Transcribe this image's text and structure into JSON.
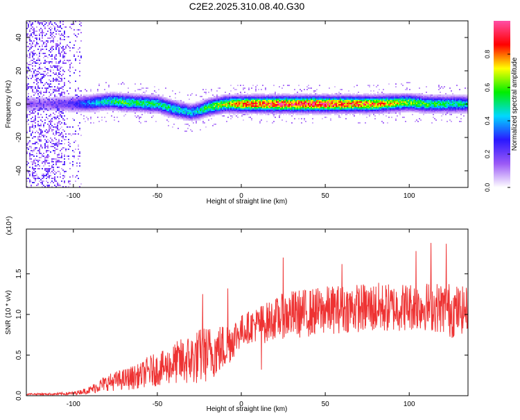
{
  "title": "C2E2.2025.310.08.40.G30",
  "chart_data": [
    {
      "type": "heatmap",
      "xlabel": "Height of straight line (km)",
      "ylabel": "Frequency (Hz)",
      "xlim": [
        -128,
        135
      ],
      "ylim": [
        -50,
        50
      ],
      "xticks": [
        -100,
        -50,
        0,
        50,
        100
      ],
      "yticks": [
        -40,
        -20,
        0,
        20,
        40
      ],
      "grid": false,
      "colorbar": {
        "label": "Normalized spectral amplitude",
        "range": [
          0,
          1
        ],
        "ticks": [
          "0.0",
          "0.2",
          "0.4",
          "0.6",
          "0.8"
        ],
        "tick_values": [
          0.0,
          0.2,
          0.4,
          0.6,
          0.8
        ],
        "colors": [
          "#ffffff",
          "#9b59f6",
          "#2a18ff",
          "#00d8ff",
          "#00ee00",
          "#ffff00",
          "#ff0000",
          "#ff4fa6"
        ]
      },
      "ridge": {
        "x": [
          -115,
          -100,
          -90,
          -80,
          -75,
          -70,
          -60,
          -50,
          -40,
          -30,
          -25,
          -20,
          -10,
          0,
          20,
          50,
          80,
          100,
          110,
          120,
          135
        ],
        "y": [
          0,
          0,
          0.5,
          1.5,
          1.5,
          1.0,
          0.5,
          0,
          -3,
          -5,
          -4,
          -2,
          0,
          0,
          0,
          0,
          0,
          1,
          0,
          0,
          0
        ],
        "amplitude": [
          0.15,
          0.25,
          0.4,
          0.5,
          0.55,
          0.6,
          0.55,
          0.55,
          0.5,
          0.45,
          0.5,
          0.6,
          0.7,
          0.85,
          0.97,
          0.97,
          0.85,
          0.65,
          0.6,
          0.55,
          0.5
        ],
        "width_hz": 2.5
      }
    },
    {
      "type": "line",
      "xlabel": "Height of straight line (km)",
      "ylabel": "SNR (10 * v/v)",
      "yscale_label": "(x10⁴)",
      "xlim": [
        -128,
        135
      ],
      "ylim": [
        0,
        2.05
      ],
      "xticks": [
        -100,
        -50,
        0,
        50,
        100
      ],
      "yticks": [
        "0.0",
        "0.5",
        "1.0",
        "1.5"
      ],
      "ytick_values": [
        0,
        0.5,
        1.0,
        1.5
      ],
      "color": "#ee3333",
      "series": [
        {
          "x": [
            -128,
            -120,
            -110,
            -100,
            -95,
            -90,
            -85,
            -80,
            -75,
            -70,
            -65,
            -60,
            -55,
            -50,
            -45,
            -40,
            -35,
            -30,
            -25,
            -23,
            -20,
            -15,
            -10,
            -5,
            0,
            5,
            10,
            12,
            15,
            20,
            25,
            30,
            40,
            50,
            60,
            70,
            80,
            90,
            100,
            110,
            120,
            125,
            130,
            135
          ],
          "base": [
            0.02,
            0.02,
            0.02,
            0.03,
            0.05,
            0.07,
            0.12,
            0.16,
            0.18,
            0.2,
            0.22,
            0.25,
            0.3,
            0.32,
            0.35,
            0.4,
            0.42,
            0.45,
            0.48,
            0.5,
            0.52,
            0.55,
            0.6,
            0.7,
            0.8,
            0.85,
            0.88,
            0.88,
            0.9,
            0.95,
            0.98,
            1.0,
            1.02,
            1.05,
            1.07,
            1.08,
            1.08,
            1.08,
            1.1,
            1.1,
            1.08,
            1.05,
            1.05,
            1.06
          ],
          "amp": [
            0.01,
            0.01,
            0.015,
            0.02,
            0.03,
            0.05,
            0.08,
            0.1,
            0.12,
            0.13,
            0.15,
            0.15,
            0.2,
            0.2,
            0.22,
            0.25,
            0.3,
            0.32,
            0.35,
            0.35,
            0.35,
            0.32,
            0.3,
            0.25,
            0.2,
            0.2,
            0.22,
            0.25,
            0.25,
            0.25,
            0.28,
            0.3,
            0.3,
            0.3,
            0.3,
            0.3,
            0.32,
            0.3,
            0.3,
            0.3,
            0.32,
            0.35,
            0.3,
            0.28
          ]
        }
      ],
      "notable_peaks": [
        {
          "x": -23,
          "y": 1.25
        },
        {
          "x": -8,
          "y": 1.32
        },
        {
          "x": 25,
          "y": 1.7
        },
        {
          "x": 60,
          "y": 1.62
        },
        {
          "x": 104,
          "y": 1.78
        },
        {
          "x": 113,
          "y": 1.88
        },
        {
          "x": 122,
          "y": 1.87
        },
        {
          "x": 12,
          "y": 0.32
        }
      ]
    }
  ]
}
